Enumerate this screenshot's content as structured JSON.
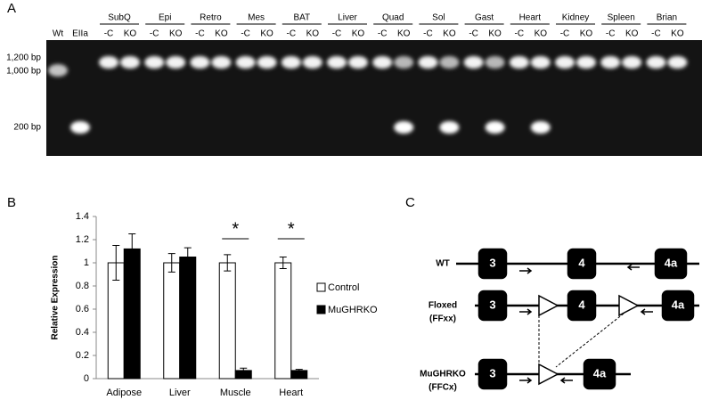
{
  "panel_a": {
    "label": "A",
    "lanes": [
      "Wt",
      "EIIa"
    ],
    "groups": [
      {
        "name": "SubQ",
        "lanes": [
          "-C",
          "KO"
        ]
      },
      {
        "name": "Epi",
        "lanes": [
          "-C",
          "KO"
        ]
      },
      {
        "name": "Retro",
        "lanes": [
          "-C",
          "KO"
        ]
      },
      {
        "name": "Mes",
        "lanes": [
          "-C",
          "KO"
        ]
      },
      {
        "name": "BAT",
        "lanes": [
          "-C",
          "KO"
        ]
      },
      {
        "name": "Liver",
        "lanes": [
          "-C",
          "KO"
        ]
      },
      {
        "name": "Quad",
        "lanes": [
          "-C",
          "KO"
        ]
      },
      {
        "name": "Sol",
        "lanes": [
          "-C",
          "KO"
        ]
      },
      {
        "name": "Gast",
        "lanes": [
          "-C",
          "KO"
        ]
      },
      {
        "name": "Heart",
        "lanes": [
          "-C",
          "KO"
        ]
      },
      {
        "name": "Kidney",
        "lanes": [
          "-C",
          "KO"
        ]
      },
      {
        "name": "Spleen",
        "lanes": [
          "-C",
          "KO"
        ]
      },
      {
        "name": "Brian",
        "lanes": [
          "-C",
          "KO"
        ]
      }
    ],
    "markers": [
      "1,200 bp",
      "1,000 bp",
      "200 bp"
    ]
  },
  "panel_b_label": "B",
  "chart_data": {
    "type": "bar",
    "y_label": "Relative Expression",
    "categories": [
      "Adipose",
      "Liver",
      "Muscle",
      "Heart"
    ],
    "series": [
      {
        "name": "Control",
        "color": "#ffffff",
        "values": [
          1,
          1,
          1,
          1
        ],
        "errors": [
          0.15,
          0.08,
          0.07,
          0.05
        ]
      },
      {
        "name": "MuGHRKO",
        "color": "#000000",
        "values": [
          1.12,
          1.05,
          0.07,
          0.07
        ],
        "errors": [
          0.13,
          0.08,
          0.02,
          0.01
        ]
      }
    ],
    "significance": [
      null,
      null,
      "*",
      "*"
    ],
    "ylim": [
      0,
      1.4
    ],
    "yticks": [
      0,
      0.2,
      0.4,
      0.6,
      0.8,
      1,
      1.2,
      1.4
    ]
  },
  "panel_c": {
    "label": "C",
    "rows": [
      {
        "name": [
          "WT"
        ],
        "exons": [
          "3",
          "4",
          "4a"
        ]
      },
      {
        "name": [
          "Floxed",
          "(FFxx)"
        ],
        "exons": [
          "3",
          "4",
          "4a"
        ]
      },
      {
        "name": [
          "MuGHRKO",
          "(FFCx)"
        ],
        "exons": [
          "3",
          "4a"
        ]
      }
    ]
  }
}
